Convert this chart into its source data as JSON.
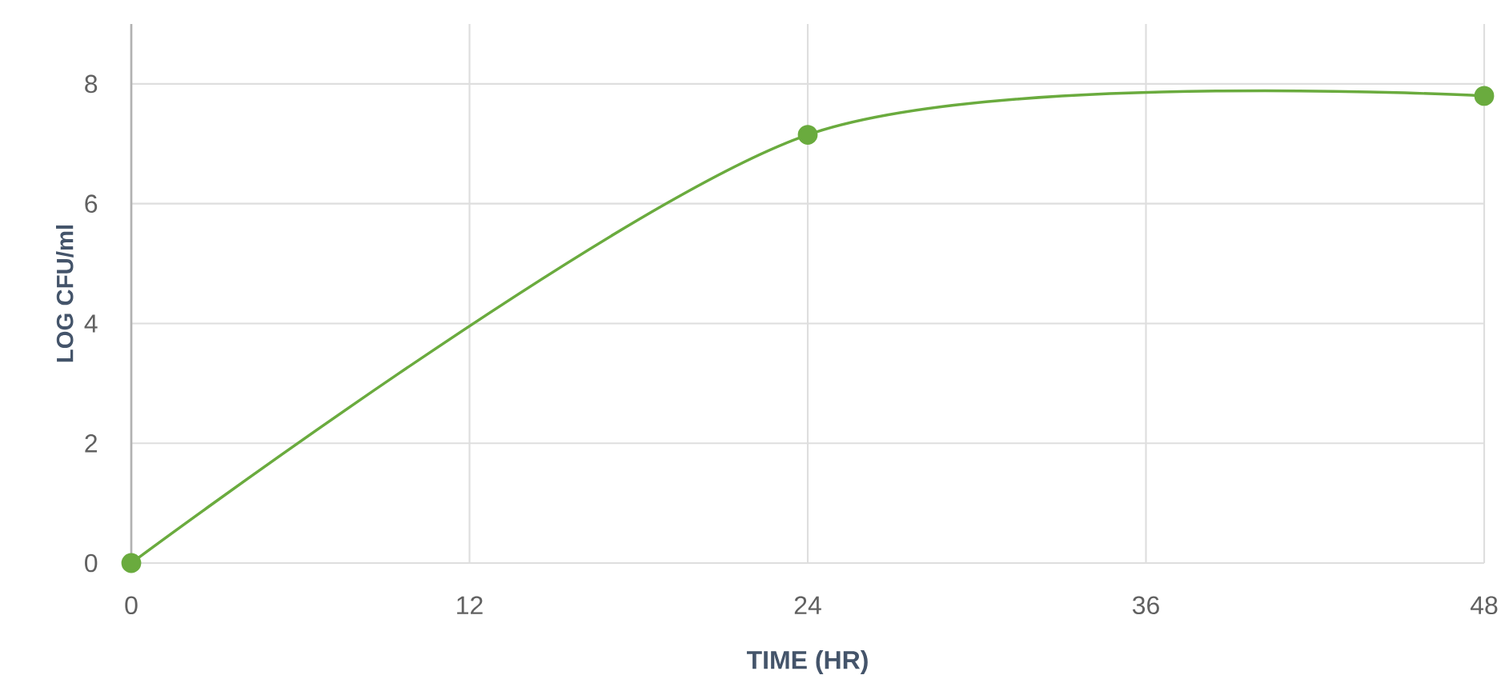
{
  "chart_data": {
    "type": "line",
    "xlabel": "TIME (HR)",
    "ylabel": "LOG CFU/ml",
    "x": [
      0,
      24,
      48
    ],
    "series": [
      {
        "color": "#6aab3e",
        "values": [
          0,
          7.15,
          7.8
        ]
      }
    ],
    "xlim": [
      0,
      48
    ],
    "xticks": [
      0,
      12,
      24,
      36,
      48
    ],
    "ylim": [
      0,
      9
    ],
    "yticks": [
      0,
      2,
      4,
      6,
      8
    ],
    "grid": true,
    "marker": "circle",
    "line_style": "solid"
  }
}
